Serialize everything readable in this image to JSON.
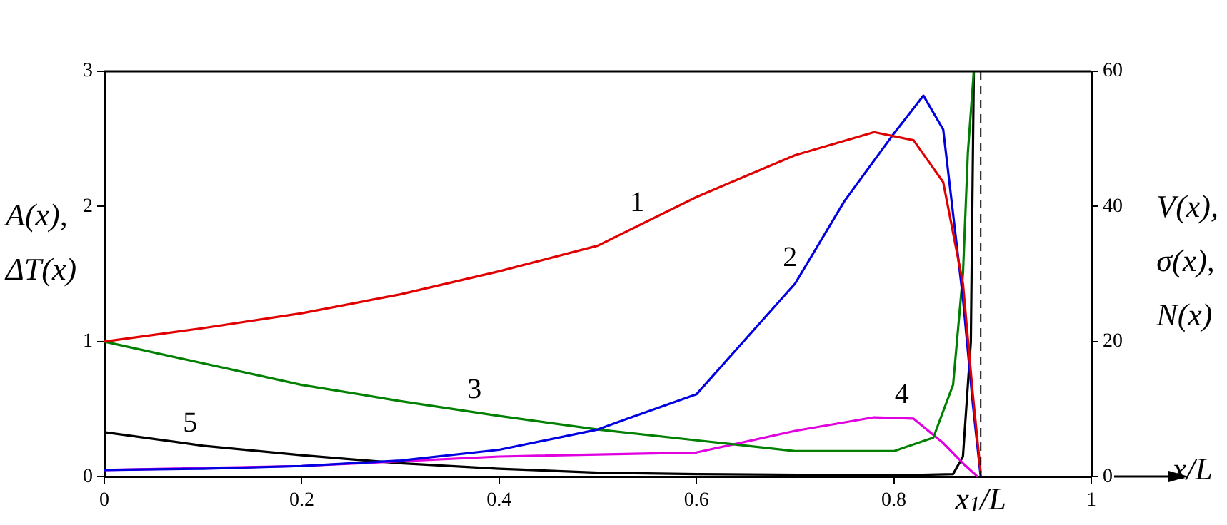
{
  "chart_data": {
    "type": "line",
    "xlabel": "x/L",
    "ylabel": "A(x),\nΔT(x)",
    "y2label": "V(x),\nσ(x),\nN(x)",
    "xlim": [
      0,
      1
    ],
    "xticks": [
      0,
      0.2,
      0.4,
      0.6,
      0.8,
      1
    ],
    "ylim": [
      0,
      3
    ],
    "yticks": [
      0,
      1,
      2,
      3
    ],
    "y2lim": [
      0,
      60
    ],
    "y2ticks": [
      0,
      20,
      40,
      60
    ],
    "grid": false,
    "legend": false,
    "marker": "none",
    "line_style": "solid",
    "series": [
      {
        "name": "1",
        "color": "#e00000",
        "x": [
          0,
          0.1,
          0.2,
          0.3,
          0.4,
          0.5,
          0.6,
          0.7,
          0.78,
          0.82,
          0.85,
          0.87,
          0.88,
          0.888
        ],
        "values": [
          1,
          1.1,
          1.21,
          1.35,
          1.52,
          1.71,
          2.07,
          2.38,
          2.55,
          2.49,
          2.18,
          1.43,
          0.61,
          0.03
        ]
      },
      {
        "name": "2",
        "color": "#0000e0",
        "x": [
          0,
          0.1,
          0.2,
          0.3,
          0.4,
          0.5,
          0.53,
          0.6,
          0.7,
          0.75,
          0.8,
          0.83,
          0.85,
          0.87,
          0.88,
          0.888
        ],
        "values": [
          0.05,
          0.06,
          0.08,
          0.12,
          0.2,
          0.35,
          0.43,
          0.61,
          1.43,
          2.04,
          2.54,
          2.82,
          2.57,
          1.32,
          0.54,
          0
        ]
      },
      {
        "name": "3",
        "color": "#008000",
        "x": [
          0,
          0.1,
          0.2,
          0.3,
          0.4,
          0.5,
          0.6,
          0.7,
          0.8,
          0.84,
          0.86,
          0.87,
          0.875,
          0.881
        ],
        "values": [
          1,
          0.84,
          0.68,
          0.56,
          0.45,
          0.35,
          0.27,
          0.19,
          0.19,
          0.29,
          0.68,
          1.5,
          2.4,
          3
        ]
      },
      {
        "name": "4",
        "color": "#e000e0",
        "x": [
          0,
          0.2,
          0.4,
          0.6,
          0.7,
          0.78,
          0.82,
          0.85,
          0.87,
          0.885
        ],
        "values": [
          0.05,
          0.08,
          0.15,
          0.18,
          0.34,
          0.44,
          0.43,
          0.25,
          0.1,
          0
        ]
      },
      {
        "name": "5",
        "color": "#000000",
        "x": [
          0,
          0.1,
          0.2,
          0.3,
          0.4,
          0.5,
          0.6,
          0.8,
          0.86,
          0.87,
          0.878,
          0.881
        ],
        "values": [
          0.33,
          0.23,
          0.16,
          0.1,
          0.06,
          0.03,
          0.02,
          0.01,
          0.02,
          0.15,
          1,
          3
        ]
      }
    ],
    "ref_lines": [
      {
        "axis": "x",
        "value": 0.888,
        "label": "x$_{1}$/L",
        "line_style": "dashed",
        "color": "#000000"
      }
    ]
  }
}
